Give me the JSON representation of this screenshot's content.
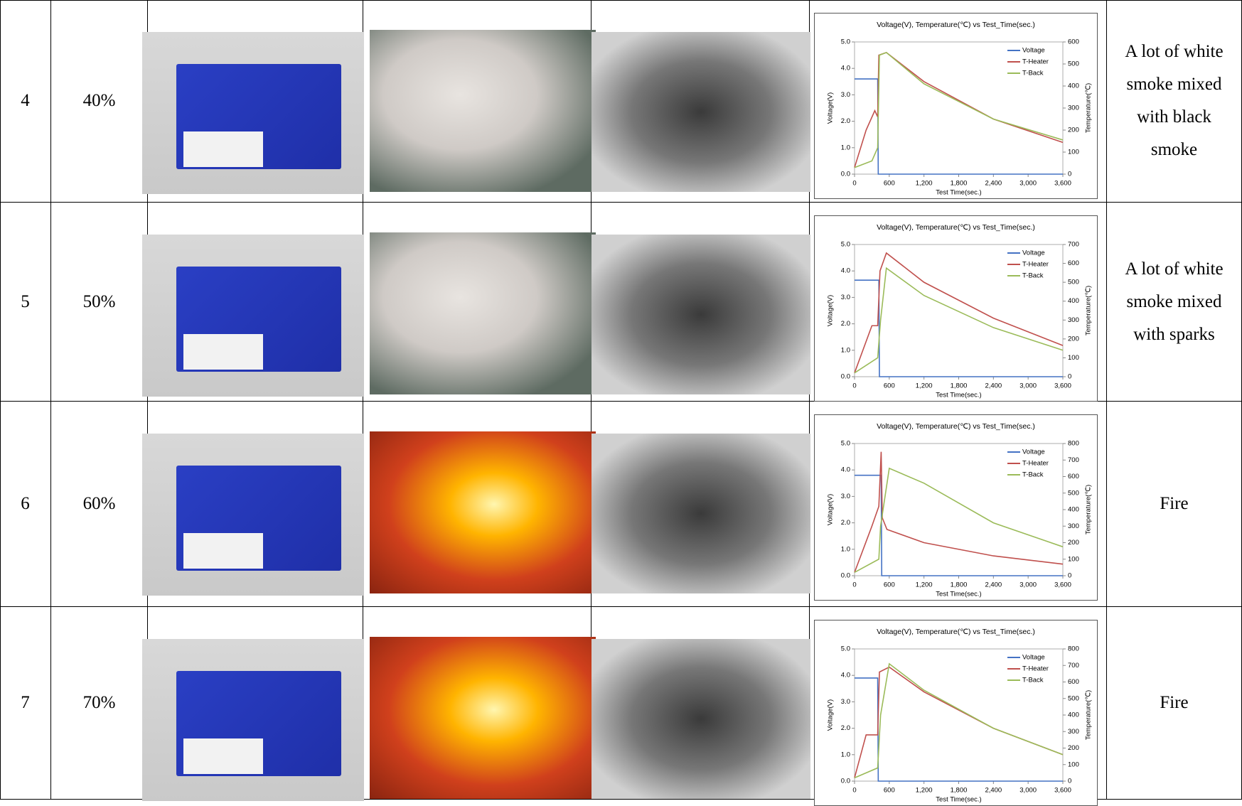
{
  "table": {
    "rows": [
      {
        "number": "4",
        "soc": "40%",
        "description": "A lot of white smoke mixed with black smoke",
        "chart": {
          "type": "line",
          "title": "Voltage(V), Temperature(℃) vs Test_Time(sec.)",
          "xlabel": "Test Time(sec.)",
          "ylabel": "Voltage(V)",
          "y2label": "Temperature(℃)",
          "xlim": [
            0,
            3600
          ],
          "xticks": [
            0,
            600,
            {
              "value": 1200,
              "label": "1,200"
            },
            {
              "value": 1800,
              "label": "1,800"
            },
            {
              "value": 2400,
              "label": "2,400"
            },
            {
              "value": 3000,
              "label": "3,000"
            },
            {
              "value": 3600,
              "label": "3,600"
            }
          ],
          "ylim": [
            0,
            5
          ],
          "yticks": [
            {
              "value": 0,
              "label": "0.0"
            },
            {
              "value": 1,
              "label": "1.0"
            },
            {
              "value": 2,
              "label": "2.0"
            },
            {
              "value": 3,
              "label": "3.0"
            },
            {
              "value": 4,
              "label": "4.0"
            },
            {
              "value": 5,
              "label": "5.0"
            }
          ],
          "y2lim": [
            0,
            600
          ],
          "y2ticks": [
            0,
            100,
            200,
            300,
            400,
            500,
            600
          ],
          "series": [
            {
              "name": "Voltage",
              "color": "#4472c4",
              "x": [
                0,
                400,
                410,
                3600
              ],
              "values": [
                3.6,
                3.6,
                0,
                0
              ]
            },
            {
              "name": "T-Heater",
              "color": "#c0504d",
              "axis": "y2",
              "x": [
                0,
                200,
                350,
                400,
                420,
                550,
                1200,
                2400,
                3600
              ],
              "values": [
                30,
                200,
                288,
                260,
                540,
                552,
                420,
                250,
                144
              ]
            },
            {
              "name": "T-Back",
              "color": "#9bbb59",
              "axis": "y2",
              "x": [
                0,
                300,
                400,
                430,
                550,
                1200,
                2400,
                3600
              ],
              "values": [
                30,
                60,
                120,
                540,
                552,
                410,
                250,
                155
              ]
            }
          ]
        }
      },
      {
        "number": "5",
        "soc": "50%",
        "description": "A lot of white smoke mixed with sparks",
        "chart": {
          "type": "line",
          "title": "Voltage(V), Temperature(℃) vs Test_Time(sec.)",
          "xlabel": "Test Time(sec.)",
          "ylabel": "Voltage(V)",
          "y2label": "Temperature(℃)",
          "xlim": [
            0,
            3600
          ],
          "xticks": [
            0,
            600,
            {
              "value": 1200,
              "label": "1,200"
            },
            {
              "value": 1800,
              "label": "1,800"
            },
            {
              "value": 2400,
              "label": "2,400"
            },
            {
              "value": 3000,
              "label": "3,000"
            },
            {
              "value": 3600,
              "label": "3,600"
            }
          ],
          "ylim": [
            0,
            5
          ],
          "yticks": [
            {
              "value": 0,
              "label": "0.0"
            },
            {
              "value": 1,
              "label": "1.0"
            },
            {
              "value": 2,
              "label": "2.0"
            },
            {
              "value": 3,
              "label": "3.0"
            },
            {
              "value": 4,
              "label": "4.0"
            },
            {
              "value": 5,
              "label": "5.0"
            }
          ],
          "y2lim": [
            0,
            700
          ],
          "y2ticks": [
            0,
            100,
            200,
            300,
            400,
            500,
            600,
            700
          ],
          "series": [
            {
              "name": "Voltage",
              "color": "#4472c4",
              "x": [
                0,
                420,
                430,
                3600
              ],
              "values": [
                3.65,
                3.65,
                0,
                0
              ]
            },
            {
              "name": "T-Heater",
              "color": "#c0504d",
              "axis": "y2",
              "x": [
                0,
                300,
                400,
                440,
                550,
                1200,
                2400,
                3600
              ],
              "values": [
                20,
                270,
                270,
                560,
                655,
                500,
                310,
                165
              ]
            },
            {
              "name": "T-Back",
              "color": "#9bbb59",
              "axis": "y2",
              "x": [
                0,
                400,
                450,
                550,
                1200,
                2400,
                3600
              ],
              "values": [
                20,
                100,
                300,
                575,
                430,
                260,
                140
              ]
            }
          ]
        }
      },
      {
        "number": "6",
        "soc": "60%",
        "description": "Fire",
        "chart": {
          "type": "line",
          "title": "Voltage(V), Temperature(℃) vs Test_Time(sec.)",
          "xlabel": "Test Time(sec.)",
          "ylabel": "Voltage(V)",
          "y2label": "Temperature(℃)",
          "xlim": [
            0,
            3600
          ],
          "xticks": [
            0,
            600,
            {
              "value": 1200,
              "label": "1,200"
            },
            {
              "value": 1800,
              "label": "1,800"
            },
            {
              "value": 2400,
              "label": "2,400"
            },
            {
              "value": 3000,
              "label": "3,000"
            },
            {
              "value": 3600,
              "label": "3,600"
            }
          ],
          "ylim": [
            0,
            5
          ],
          "yticks": [
            {
              "value": 0,
              "label": "0.0"
            },
            {
              "value": 1,
              "label": "1.0"
            },
            {
              "value": 2,
              "label": "2.0"
            },
            {
              "value": 3,
              "label": "3.0"
            },
            {
              "value": 4,
              "label": "4.0"
            },
            {
              "value": 5,
              "label": "5.0"
            }
          ],
          "y2lim": [
            0,
            800
          ],
          "y2ticks": [
            0,
            100,
            200,
            300,
            400,
            500,
            600,
            700,
            800
          ],
          "series": [
            {
              "name": "Voltage",
              "color": "#4472c4",
              "x": [
                0,
                460,
                470,
                3600
              ],
              "values": [
                3.8,
                3.8,
                0,
                0
              ]
            },
            {
              "name": "T-Heater",
              "color": "#c0504d",
              "axis": "y2",
              "x": [
                0,
                300,
                420,
                460,
                480,
                560,
                1200,
                2400,
                3600
              ],
              "values": [
                20,
                300,
                420,
                750,
                350,
                280,
                200,
                120,
                70
              ]
            },
            {
              "name": "T-Back",
              "color": "#9bbb59",
              "axis": "y2",
              "x": [
                0,
                420,
                450,
                600,
                1200,
                2400,
                3600
              ],
              "values": [
                20,
                100,
                300,
                650,
                560,
                320,
                175
              ]
            }
          ]
        }
      },
      {
        "number": "7",
        "soc": "70%",
        "description": "Fire",
        "chart": {
          "type": "line",
          "title": "Voltage(V), Temperature(℃) vs Test_Time(sec.)",
          "xlabel": "Test Time(sec.)",
          "ylabel": "Voltage(V)",
          "y2label": "Temperature(℃)",
          "xlim": [
            0,
            3600
          ],
          "xticks": [
            0,
            600,
            {
              "value": 1200,
              "label": "1,200"
            },
            {
              "value": 1800,
              "label": "1,800"
            },
            {
              "value": 2400,
              "label": "2,400"
            },
            {
              "value": 3000,
              "label": "3,000"
            },
            {
              "value": 3600,
              "label": "3,600"
            }
          ],
          "ylim": [
            0,
            5
          ],
          "yticks": [
            {
              "value": 0,
              "label": "0.0"
            },
            {
              "value": 1,
              "label": "1.0"
            },
            {
              "value": 2,
              "label": "2.0"
            },
            {
              "value": 3,
              "label": "3.0"
            },
            {
              "value": 4,
              "label": "4.0"
            },
            {
              "value": 5,
              "label": "5.0"
            }
          ],
          "y2lim": [
            0,
            800
          ],
          "y2ticks": [
            0,
            100,
            200,
            300,
            400,
            500,
            600,
            700,
            800
          ],
          "series": [
            {
              "name": "Voltage",
              "color": "#4472c4",
              "x": [
                0,
                400,
                410,
                3600
              ],
              "values": [
                3.9,
                3.9,
                0,
                0
              ]
            },
            {
              "name": "T-Heater",
              "color": "#c0504d",
              "axis": "y2",
              "x": [
                0,
                200,
                400,
                430,
                600,
                1200,
                2400,
                3600
              ],
              "values": [
                20,
                280,
                280,
                660,
                690,
                540,
                320,
                160
              ]
            },
            {
              "name": "T-Back",
              "color": "#9bbb59",
              "axis": "y2",
              "x": [
                0,
                400,
                450,
                600,
                1200,
                2400,
                3600
              ],
              "values": [
                20,
                80,
                400,
                710,
                550,
                320,
                160
              ]
            }
          ]
        }
      }
    ]
  }
}
